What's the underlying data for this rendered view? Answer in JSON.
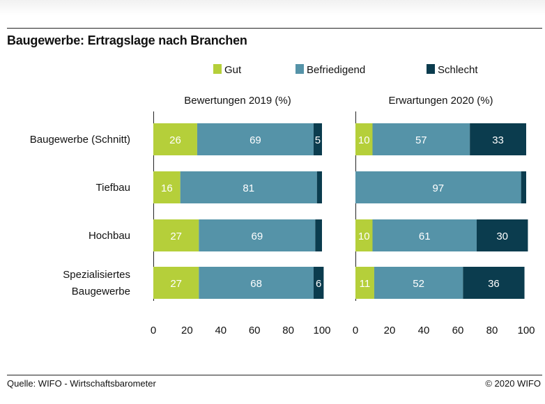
{
  "title": "Baugewerbe: Ertragslage nach Branchen",
  "footer": {
    "source": "Quelle: WIFO - Wirtschaftsbarometer",
    "copyright": "©  2020 WIFO"
  },
  "colors": {
    "Gut": "#b5cf3a",
    "Befriedigend": "#5593a8",
    "Schlecht": "#0b3c4e"
  },
  "chart_data": {
    "type": "bar",
    "orientation": "horizontal",
    "stacked": true,
    "legend": {
      "position": "top",
      "items": [
        "Gut",
        "Befriedigend",
        "Schlecht"
      ]
    },
    "categories": [
      "Baugewerbe (Schnitt)",
      "Tiefbau",
      "Hochbau",
      "Spezialisiertes Baugewerbe"
    ],
    "category_label_lines": [
      [
        "Baugewerbe (Schnitt)"
      ],
      [
        "Tiefbau"
      ],
      [
        "Hochbau"
      ],
      [
        "Spezialisiertes",
        "Baugewerbe"
      ]
    ],
    "panels": [
      {
        "title": "Bewertungen 2019 (%)",
        "xlim": [
          0,
          100
        ],
        "xticks": [
          0,
          20,
          40,
          60,
          80,
          100
        ],
        "series": [
          {
            "name": "Gut",
            "values": [
              26,
              16,
              27,
              27
            ],
            "labels": [
              "26",
              "16",
              "27",
              "27"
            ]
          },
          {
            "name": "Befriedigend",
            "values": [
              69,
              81,
              69,
              68
            ],
            "labels": [
              "69",
              "81",
              "69",
              "68"
            ]
          },
          {
            "name": "Schlecht",
            "values": [
              5,
              3,
              4,
              6
            ],
            "labels": [
              "5",
              "",
              "",
              "6"
            ]
          }
        ]
      },
      {
        "title": "Erwartungen 2020 (%)",
        "xlim": [
          0,
          100
        ],
        "xticks": [
          0,
          20,
          40,
          60,
          80,
          100
        ],
        "series": [
          {
            "name": "Gut",
            "values": [
              10,
              0,
              10,
              11
            ],
            "labels": [
              "10",
              "",
              "10",
              "11"
            ]
          },
          {
            "name": "Befriedigend",
            "values": [
              57,
              97,
              61,
              52
            ],
            "labels": [
              "57",
              "97",
              "61",
              "52"
            ]
          },
          {
            "name": "Schlecht",
            "values": [
              33,
              3,
              30,
              36
            ],
            "labels": [
              "33",
              "",
              "30",
              "36"
            ]
          }
        ]
      }
    ]
  }
}
